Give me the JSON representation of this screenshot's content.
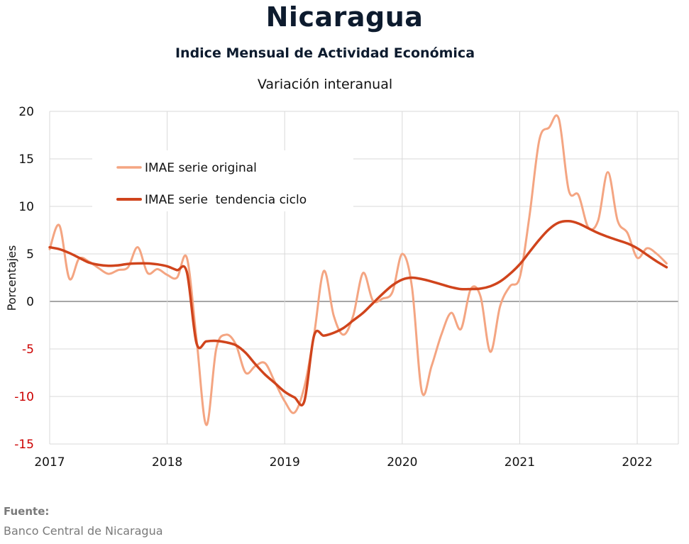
{
  "header": {
    "title": "Nicaragua",
    "subtitle": "Indice Mensual de  Actividad Económica",
    "subsubtitle": "Variación interanual"
  },
  "footer": {
    "source_label": "Fuente:",
    "source_value": "Banco Central de Nicaragua"
  },
  "chart_data": {
    "type": "line",
    "ylabel": "Porcentajes",
    "xlabel": "",
    "ylim": [
      -15,
      20
    ],
    "xlim": [
      2017,
      2022.35
    ],
    "yticks": [
      {
        "value": -15,
        "label": "-15"
      },
      {
        "value": -10,
        "label": "-10"
      },
      {
        "value": -5,
        "label": "-5"
      },
      {
        "value": 0,
        "label": "0"
      },
      {
        "value": 5,
        "label": "5"
      },
      {
        "value": 10,
        "label": "10"
      },
      {
        "value": 15,
        "label": "15"
      },
      {
        "value": 20,
        "label": "20"
      }
    ],
    "xticks": [
      {
        "value": 2017,
        "label": "2017"
      },
      {
        "value": 2018,
        "label": "2018"
      },
      {
        "value": 2019,
        "label": "2019"
      },
      {
        "value": 2020,
        "label": "2020"
      },
      {
        "value": 2021,
        "label": "2021"
      },
      {
        "value": 2022,
        "label": "2022"
      }
    ],
    "grid": true,
    "legend_position": "top-left",
    "colors": {
      "original": "#f4a582",
      "trend": "#d0441c",
      "negative_tick": "#cc0000",
      "positive_tick": "#111111"
    },
    "series": [
      {
        "name": "IMAE serie original",
        "color": "#f4a582",
        "points": [
          [
            2017.0,
            5.5
          ],
          [
            2017.083,
            8.0
          ],
          [
            2017.167,
            2.4
          ],
          [
            2017.25,
            4.5
          ],
          [
            2017.333,
            4.2
          ],
          [
            2017.417,
            3.5
          ],
          [
            2017.5,
            2.9
          ],
          [
            2017.583,
            3.3
          ],
          [
            2017.667,
            3.6
          ],
          [
            2017.75,
            5.7
          ],
          [
            2017.833,
            3.0
          ],
          [
            2017.917,
            3.4
          ],
          [
            2018.0,
            2.8
          ],
          [
            2018.083,
            2.5
          ],
          [
            2018.167,
            4.6
          ],
          [
            2018.25,
            -4.0
          ],
          [
            2018.333,
            -13.0
          ],
          [
            2018.417,
            -5.0
          ],
          [
            2018.5,
            -3.5
          ],
          [
            2018.583,
            -4.5
          ],
          [
            2018.667,
            -7.5
          ],
          [
            2018.75,
            -6.8
          ],
          [
            2018.833,
            -6.5
          ],
          [
            2018.917,
            -8.5
          ],
          [
            2019.0,
            -10.5
          ],
          [
            2019.083,
            -11.7
          ],
          [
            2019.167,
            -9.0
          ],
          [
            2019.25,
            -3.5
          ],
          [
            2019.333,
            3.2
          ],
          [
            2019.417,
            -1.5
          ],
          [
            2019.5,
            -3.5
          ],
          [
            2019.583,
            -1.5
          ],
          [
            2019.667,
            3.0
          ],
          [
            2019.75,
            0.1
          ],
          [
            2019.833,
            0.3
          ],
          [
            2019.917,
            1.0
          ],
          [
            2020.0,
            5.0
          ],
          [
            2020.083,
            1.5
          ],
          [
            2020.167,
            -9.5
          ],
          [
            2020.25,
            -6.8
          ],
          [
            2020.333,
            -3.5
          ],
          [
            2020.417,
            -1.2
          ],
          [
            2020.5,
            -2.9
          ],
          [
            2020.583,
            1.3
          ],
          [
            2020.667,
            0.5
          ],
          [
            2020.75,
            -5.3
          ],
          [
            2020.833,
            -0.5
          ],
          [
            2020.917,
            1.6
          ],
          [
            2021.0,
            2.5
          ],
          [
            2021.083,
            9.0
          ],
          [
            2021.167,
            17.0
          ],
          [
            2021.25,
            18.3
          ],
          [
            2021.333,
            19.2
          ],
          [
            2021.417,
            11.7
          ],
          [
            2021.5,
            11.2
          ],
          [
            2021.583,
            7.8
          ],
          [
            2021.667,
            8.5
          ],
          [
            2021.75,
            13.6
          ],
          [
            2021.833,
            8.5
          ],
          [
            2021.917,
            7.2
          ],
          [
            2022.0,
            4.6
          ],
          [
            2022.083,
            5.6
          ],
          [
            2022.167,
            5.0
          ],
          [
            2022.25,
            4.0
          ]
        ]
      },
      {
        "name": "IMAE serie  tendencia ciclo",
        "color": "#d0441c",
        "points": [
          [
            2017.0,
            5.7
          ],
          [
            2017.083,
            5.5
          ],
          [
            2017.167,
            5.1
          ],
          [
            2017.25,
            4.6
          ],
          [
            2017.333,
            4.1
          ],
          [
            2017.417,
            3.85
          ],
          [
            2017.5,
            3.75
          ],
          [
            2017.583,
            3.8
          ],
          [
            2017.667,
            3.95
          ],
          [
            2017.75,
            4.0
          ],
          [
            2017.833,
            4.0
          ],
          [
            2017.917,
            3.9
          ],
          [
            2018.0,
            3.7
          ],
          [
            2018.083,
            3.3
          ],
          [
            2018.167,
            3.1
          ],
          [
            2018.25,
            -4.4
          ],
          [
            2018.333,
            -4.2
          ],
          [
            2018.417,
            -4.15
          ],
          [
            2018.5,
            -4.3
          ],
          [
            2018.583,
            -4.6
          ],
          [
            2018.667,
            -5.4
          ],
          [
            2018.75,
            -6.6
          ],
          [
            2018.833,
            -7.7
          ],
          [
            2018.917,
            -8.6
          ],
          [
            2019.0,
            -9.5
          ],
          [
            2019.083,
            -10.1
          ],
          [
            2019.167,
            -10.5
          ],
          [
            2019.25,
            -3.6
          ],
          [
            2019.333,
            -3.6
          ],
          [
            2019.417,
            -3.3
          ],
          [
            2019.5,
            -2.8
          ],
          [
            2019.583,
            -2.0
          ],
          [
            2019.667,
            -1.2
          ],
          [
            2019.75,
            -0.2
          ],
          [
            2019.833,
            0.8
          ],
          [
            2019.917,
            1.7
          ],
          [
            2020.0,
            2.3
          ],
          [
            2020.083,
            2.5
          ],
          [
            2020.167,
            2.35
          ],
          [
            2020.25,
            2.1
          ],
          [
            2020.333,
            1.8
          ],
          [
            2020.417,
            1.5
          ],
          [
            2020.5,
            1.3
          ],
          [
            2020.583,
            1.3
          ],
          [
            2020.667,
            1.35
          ],
          [
            2020.75,
            1.6
          ],
          [
            2020.833,
            2.1
          ],
          [
            2020.917,
            2.9
          ],
          [
            2021.0,
            3.9
          ],
          [
            2021.083,
            5.2
          ],
          [
            2021.167,
            6.5
          ],
          [
            2021.25,
            7.6
          ],
          [
            2021.333,
            8.3
          ],
          [
            2021.417,
            8.45
          ],
          [
            2021.5,
            8.2
          ],
          [
            2021.583,
            7.7
          ],
          [
            2021.667,
            7.2
          ],
          [
            2021.75,
            6.8
          ],
          [
            2021.833,
            6.45
          ],
          [
            2021.917,
            6.1
          ],
          [
            2022.0,
            5.6
          ],
          [
            2022.083,
            4.9
          ],
          [
            2022.167,
            4.2
          ],
          [
            2022.25,
            3.6
          ]
        ]
      }
    ]
  }
}
